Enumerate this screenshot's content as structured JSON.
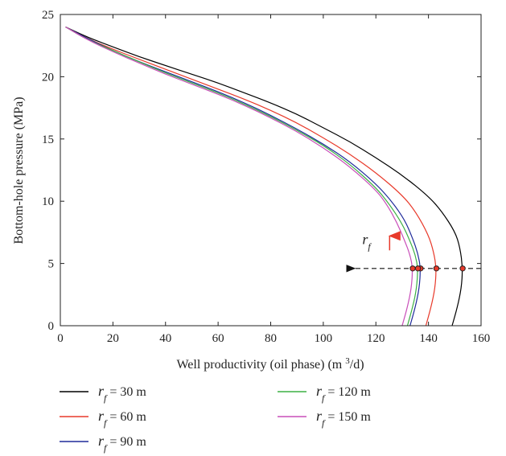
{
  "chart_data": {
    "type": "line",
    "xlabel": "Well productivity (oil phase) (m³/d)",
    "ylabel": "Bottom-hole pressure (MPa)",
    "xlim": [
      0,
      160
    ],
    "ylim": [
      0,
      25
    ],
    "xticks": [
      0,
      20,
      40,
      60,
      80,
      100,
      120,
      140,
      160
    ],
    "yticks": [
      0,
      5,
      10,
      15,
      20,
      25
    ],
    "grid": false,
    "legend_position": "bottom",
    "series": [
      {
        "name": "r_f = 30 m",
        "label_var": "r",
        "label_sub": "f",
        "label_rest": " = 30 m",
        "color": "#000000",
        "x": [
          2,
          10,
          20,
          30,
          40,
          50,
          60,
          70,
          80,
          90,
          100,
          110,
          120,
          130,
          140,
          145,
          150,
          152,
          153,
          152.5,
          151,
          149
        ],
        "y": [
          24,
          23.2,
          22.4,
          21.6,
          20.9,
          20.2,
          19.5,
          18.7,
          17.9,
          17,
          15.9,
          14.8,
          13.5,
          12.1,
          10.4,
          9.2,
          7.6,
          6.3,
          4.6,
          3,
          1.5,
          0
        ]
      },
      {
        "name": "r_f = 60 m",
        "label_var": "r",
        "label_sub": "f",
        "label_rest": " = 60 m",
        "color": "#e8392a",
        "x": [
          2,
          10,
          20,
          30,
          40,
          50,
          60,
          70,
          80,
          90,
          100,
          110,
          120,
          130,
          135,
          140,
          142,
          143,
          142.5,
          141,
          139
        ],
        "y": [
          24,
          23.1,
          22.2,
          21.4,
          20.6,
          19.8,
          19,
          18.2,
          17.3,
          16.3,
          15.1,
          13.8,
          12.3,
          10.5,
          9.2,
          7.3,
          5.9,
          4.6,
          3,
          1.5,
          0
        ]
      },
      {
        "name": "r_f = 90 m",
        "label_var": "r",
        "label_sub": "f",
        "label_rest": " = 90 m",
        "color": "#1e2a9a",
        "x": [
          2,
          10,
          20,
          30,
          40,
          50,
          60,
          70,
          80,
          90,
          100,
          110,
          120,
          126,
          131,
          134,
          136,
          137,
          136.5,
          135,
          133
        ],
        "y": [
          24,
          23.1,
          22.1,
          21.2,
          20.4,
          19.6,
          18.8,
          17.9,
          16.9,
          15.8,
          14.6,
          13.2,
          11.4,
          10,
          8.5,
          7,
          5.8,
          4.6,
          3,
          1.5,
          0
        ]
      },
      {
        "name": "r_f = 120 m",
        "label_var": "r",
        "label_sub": "f",
        "label_rest": " = 120 m",
        "color": "#3cb043",
        "x": [
          2,
          10,
          20,
          30,
          40,
          50,
          60,
          70,
          80,
          90,
          100,
          110,
          120,
          125,
          130,
          133,
          135,
          136,
          135.5,
          134,
          132
        ],
        "y": [
          24,
          23,
          22.1,
          21.2,
          20.3,
          19.5,
          18.7,
          17.8,
          16.8,
          15.7,
          14.5,
          13,
          11.1,
          9.8,
          8.2,
          6.8,
          5.7,
          4.6,
          3,
          1.5,
          0
        ]
      },
      {
        "name": "r_f = 150 m",
        "label_var": "r",
        "label_sub": "f",
        "label_rest": " = 150 m",
        "color": "#c94fb9",
        "x": [
          2,
          10,
          20,
          30,
          40,
          50,
          60,
          70,
          80,
          90,
          100,
          110,
          120,
          124,
          128,
          131,
          133,
          134,
          133.5,
          132,
          130
        ],
        "y": [
          24,
          23,
          22,
          21.1,
          20.2,
          19.4,
          18.6,
          17.7,
          16.7,
          15.6,
          14.3,
          12.8,
          10.9,
          9.8,
          8.3,
          6.8,
          5.7,
          4.6,
          3,
          1.5,
          0
        ]
      }
    ],
    "markers": {
      "y": 4.6,
      "x": [
        153,
        143,
        137,
        136,
        134
      ],
      "fill": "#e8392a"
    },
    "dashed_arrow": {
      "y": 4.6,
      "x_from": 160,
      "x_to": 112
    },
    "annotation": {
      "var": "r",
      "sub": "f",
      "x": 124,
      "y": 6.7,
      "arrow_color": "#e8392a"
    }
  }
}
